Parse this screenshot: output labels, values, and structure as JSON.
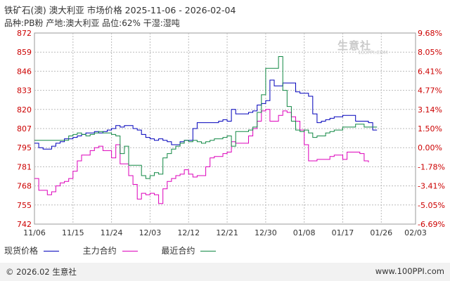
{
  "header": {
    "title": "铁矿石(澳) 澳大利亚 市场价格 2025-11-06 - 2026-02-04",
    "subtitle": "品种:PB粉 产地:澳大利亚 品位:62% 干湿:湿吨"
  },
  "watermark": {
    "logo": "生意社",
    "url": "100PPI.COM"
  },
  "footer": {
    "copyright": "© 2026.02 生意社",
    "site": "www.100PPI.com"
  },
  "colors": {
    "spot": "#0000bb",
    "main": "#dd00bb",
    "recent": "#118844",
    "axis_left": "#cc0000",
    "grid": "#bbbbbb"
  },
  "chart_data": {
    "type": "line",
    "x_ticks": [
      "11/06",
      "11/15",
      "11/24",
      "12/03",
      "12/12",
      "12/21",
      "12/30",
      "01/08",
      "01/17",
      "01/26",
      "02/03"
    ],
    "y_left_ticks": [
      "872",
      "859",
      "846",
      "833",
      "820",
      "807",
      "795",
      "781",
      "768",
      "755",
      "742"
    ],
    "y_right_ticks": [
      "9.68%",
      "8.05%",
      "6.41%",
      "4.77%",
      "3.14%",
      "1.50%",
      "0.00%",
      "-1.78%",
      "-3.41%",
      "-5.05%",
      "-6.69%"
    ],
    "ylim": [
      742,
      872
    ],
    "y_unit_note": "",
    "legend": [
      "现货价格",
      "主力合约",
      "最近合约"
    ],
    "series": [
      {
        "name": "现货价格",
        "color": "#0000bb",
        "points": [
          [
            0,
            797
          ],
          [
            1,
            794
          ],
          [
            2,
            793
          ],
          [
            3,
            793
          ],
          [
            4,
            795
          ],
          [
            5,
            797
          ],
          [
            6,
            798
          ],
          [
            7,
            800
          ],
          [
            8,
            800
          ],
          [
            9,
            801
          ],
          [
            10,
            802
          ],
          [
            11,
            803
          ],
          [
            12,
            804
          ],
          [
            13,
            804
          ],
          [
            14,
            805
          ],
          [
            15,
            804
          ],
          [
            16,
            805
          ],
          [
            17,
            806
          ],
          [
            18,
            807
          ],
          [
            19,
            809
          ],
          [
            20,
            808
          ],
          [
            21,
            809
          ],
          [
            22,
            809
          ],
          [
            23,
            807
          ],
          [
            24,
            806
          ],
          [
            25,
            803
          ],
          [
            26,
            801
          ],
          [
            27,
            800
          ],
          [
            28,
            799
          ],
          [
            29,
            800
          ],
          [
            30,
            799
          ],
          [
            31,
            798
          ],
          [
            32,
            796
          ],
          [
            33,
            796
          ],
          [
            34,
            798
          ],
          [
            35,
            799
          ],
          [
            36,
            799
          ],
          [
            37,
            807
          ],
          [
            38,
            811
          ],
          [
            39,
            811
          ],
          [
            40,
            811
          ],
          [
            41,
            811
          ],
          [
            42,
            811
          ],
          [
            43,
            812
          ],
          [
            44,
            813
          ],
          [
            45,
            812
          ],
          [
            46,
            820
          ],
          [
            47,
            817
          ],
          [
            48,
            817
          ],
          [
            49,
            817
          ],
          [
            50,
            818
          ],
          [
            51,
            819
          ],
          [
            52,
            823
          ],
          [
            53,
            824
          ],
          [
            54,
            826
          ],
          [
            55,
            840
          ],
          [
            56,
            836
          ],
          [
            57,
            836
          ],
          [
            58,
            838
          ],
          [
            59,
            838
          ],
          [
            60,
            838
          ],
          [
            61,
            832
          ],
          [
            62,
            831
          ],
          [
            63,
            831
          ],
          [
            64,
            829
          ],
          [
            65,
            817
          ],
          [
            66,
            811
          ],
          [
            67,
            812
          ],
          [
            68,
            813
          ],
          [
            69,
            814
          ],
          [
            70,
            815
          ],
          [
            71,
            815
          ],
          [
            72,
            816
          ],
          [
            73,
            816
          ],
          [
            74,
            816
          ],
          [
            75,
            812
          ],
          [
            76,
            812
          ],
          [
            77,
            812
          ],
          [
            78,
            811
          ],
          [
            79,
            806
          ],
          [
            80,
            806
          ]
        ]
      },
      {
        "name": "主力合约",
        "color": "#dd00bb",
        "points": [
          [
            0,
            773
          ],
          [
            1,
            765
          ],
          [
            2,
            765
          ],
          [
            3,
            762
          ],
          [
            4,
            764
          ],
          [
            5,
            768
          ],
          [
            6,
            770
          ],
          [
            7,
            771
          ],
          [
            8,
            773
          ],
          [
            9,
            778
          ],
          [
            10,
            785
          ],
          [
            11,
            789
          ],
          [
            12,
            789
          ],
          [
            13,
            792
          ],
          [
            14,
            794
          ],
          [
            15,
            795
          ],
          [
            16,
            792
          ],
          [
            17,
            792
          ],
          [
            18,
            787
          ],
          [
            19,
            796
          ],
          [
            20,
            783
          ],
          [
            21,
            783
          ],
          [
            22,
            775
          ],
          [
            23,
            769
          ],
          [
            24,
            759
          ],
          [
            25,
            763
          ],
          [
            26,
            762
          ],
          [
            27,
            763
          ],
          [
            28,
            762
          ],
          [
            29,
            756
          ],
          [
            30,
            766
          ],
          [
            31,
            771
          ],
          [
            32,
            773
          ],
          [
            33,
            775
          ],
          [
            34,
            776
          ],
          [
            35,
            779
          ],
          [
            36,
            776
          ],
          [
            37,
            774
          ],
          [
            38,
            775
          ],
          [
            39,
            775
          ],
          [
            40,
            781
          ],
          [
            41,
            787
          ],
          [
            42,
            788
          ],
          [
            43,
            788
          ],
          [
            44,
            790
          ],
          [
            45,
            791
          ],
          [
            46,
            798
          ],
          [
            47,
            797
          ],
          [
            48,
            797
          ],
          [
            49,
            797
          ],
          [
            50,
            802
          ],
          [
            51,
            807
          ],
          [
            52,
            812
          ],
          [
            53,
            819
          ],
          [
            54,
            820
          ],
          [
            55,
            812
          ],
          [
            56,
            812
          ],
          [
            57,
            816
          ],
          [
            58,
            819
          ],
          [
            59,
            818
          ],
          [
            60,
            815
          ],
          [
            61,
            812
          ],
          [
            62,
            806
          ],
          [
            63,
            796
          ],
          [
            64,
            785
          ],
          [
            65,
            785
          ],
          [
            66,
            786
          ],
          [
            67,
            786
          ],
          [
            68,
            786
          ],
          [
            69,
            788
          ],
          [
            70,
            789
          ],
          [
            71,
            789
          ],
          [
            72,
            786
          ],
          [
            73,
            791
          ],
          [
            74,
            791
          ],
          [
            75,
            791
          ],
          [
            76,
            790
          ],
          [
            77,
            785
          ],
          [
            78,
            784
          ]
        ]
      },
      {
        "name": "最近合约",
        "color": "#118844",
        "points": [
          [
            0,
            799
          ],
          [
            1,
            799
          ],
          [
            2,
            799
          ],
          [
            3,
            799
          ],
          [
            4,
            799
          ],
          [
            5,
            799
          ],
          [
            6,
            799
          ],
          [
            7,
            799
          ],
          [
            8,
            802
          ],
          [
            9,
            803
          ],
          [
            10,
            804
          ],
          [
            11,
            803
          ],
          [
            12,
            802
          ],
          [
            13,
            803
          ],
          [
            14,
            804
          ],
          [
            15,
            805
          ],
          [
            16,
            804
          ],
          [
            17,
            804
          ],
          [
            18,
            803
          ],
          [
            19,
            802
          ],
          [
            20,
            790
          ],
          [
            21,
            795
          ],
          [
            22,
            782
          ],
          [
            23,
            782
          ],
          [
            24,
            782
          ],
          [
            25,
            775
          ],
          [
            26,
            773
          ],
          [
            27,
            775
          ],
          [
            28,
            777
          ],
          [
            29,
            776
          ],
          [
            30,
            787
          ],
          [
            31,
            790
          ],
          [
            32,
            793
          ],
          [
            33,
            795
          ],
          [
            34,
            797
          ],
          [
            35,
            799
          ],
          [
            36,
            798
          ],
          [
            37,
            799
          ],
          [
            38,
            798
          ],
          [
            39,
            797
          ],
          [
            40,
            798
          ],
          [
            41,
            799
          ],
          [
            42,
            800
          ],
          [
            43,
            800
          ],
          [
            44,
            801
          ],
          [
            45,
            802
          ],
          [
            46,
            795
          ],
          [
            47,
            805
          ],
          [
            48,
            805
          ],
          [
            49,
            805
          ],
          [
            50,
            806
          ],
          [
            51,
            808
          ],
          [
            52,
            818
          ],
          [
            53,
            830
          ],
          [
            54,
            848
          ],
          [
            55,
            848
          ],
          [
            56,
            848
          ],
          [
            57,
            856
          ],
          [
            58,
            833
          ],
          [
            59,
            822
          ],
          [
            60,
            812
          ],
          [
            61,
            806
          ],
          [
            62,
            805
          ],
          [
            63,
            806
          ],
          [
            64,
            804
          ],
          [
            65,
            801
          ],
          [
            66,
            802
          ],
          [
            67,
            802
          ],
          [
            68,
            804
          ],
          [
            69,
            805
          ],
          [
            70,
            806
          ],
          [
            71,
            806
          ],
          [
            72,
            808
          ],
          [
            73,
            808
          ],
          [
            74,
            808
          ],
          [
            75,
            810
          ],
          [
            76,
            810
          ],
          [
            77,
            808
          ],
          [
            78,
            808
          ],
          [
            79,
            808
          ],
          [
            80,
            808
          ]
        ]
      }
    ],
    "x_tick_index": [
      0,
      9,
      18,
      27,
      36,
      45,
      54,
      63,
      72,
      81,
      89
    ]
  }
}
